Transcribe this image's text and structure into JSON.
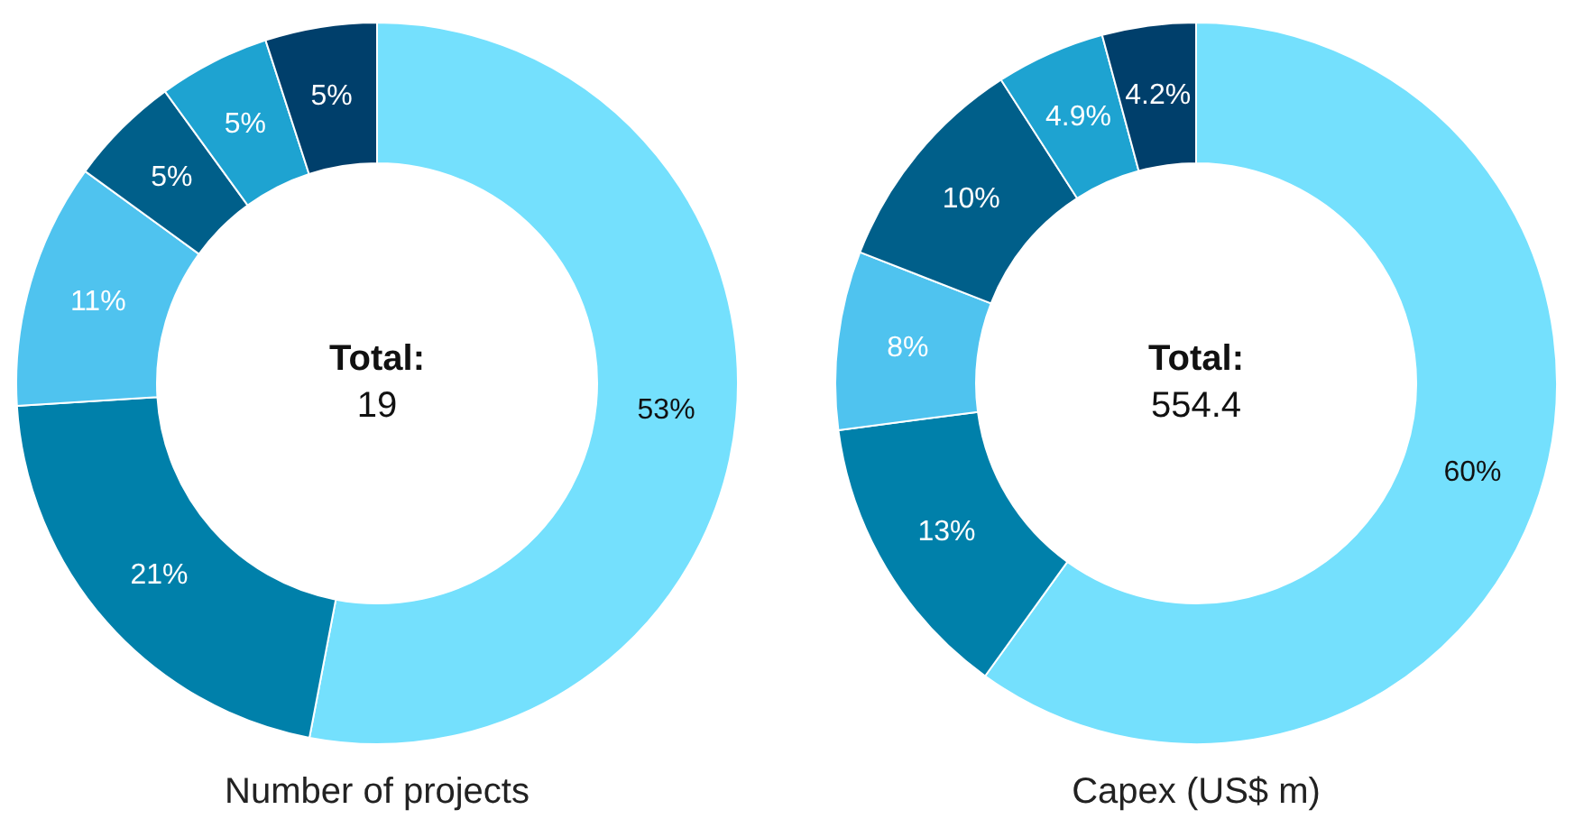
{
  "chart_data": [
    {
      "type": "donut",
      "title": "Number of projects",
      "categories": [
        null,
        null,
        null,
        null,
        null,
        null
      ],
      "values": [
        53,
        21,
        11,
        5,
        5,
        5
      ],
      "colors": [
        "#74e0fd",
        "#0080aa",
        "#4fc3ef",
        "#005f8a",
        "#1ea3d1",
        "#003f6b"
      ],
      "value_labels": [
        "53%",
        "21%",
        "11%",
        "5%",
        "5%",
        "5%"
      ],
      "annotations": [
        "Total:",
        "19"
      ]
    },
    {
      "type": "donut",
      "title": "Capex (US$ m)",
      "categories": [
        null,
        null,
        null,
        null,
        null,
        null
      ],
      "values": [
        60,
        13,
        8,
        10,
        4.9,
        4.2
      ],
      "colors": [
        "#74e0fd",
        "#0080aa",
        "#4fc3ef",
        "#005f8a",
        "#1ea3d1",
        "#003f6b"
      ],
      "value_labels": [
        "60%",
        "13%",
        "8%",
        "10%",
        "4.9%",
        "4.2%"
      ],
      "annotations": [
        "Total:",
        "554.4"
      ]
    }
  ]
}
